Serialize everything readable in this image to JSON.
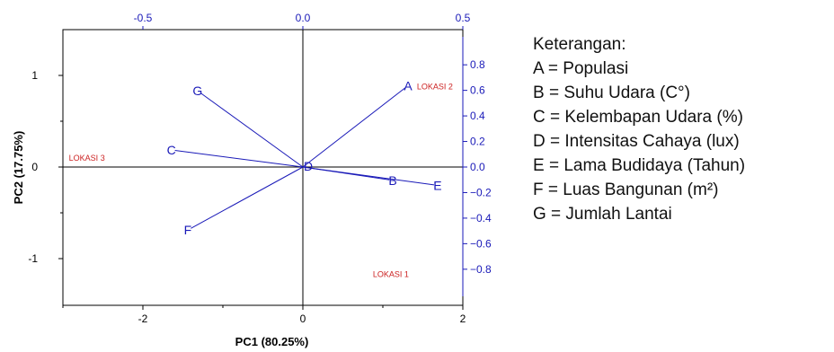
{
  "chart_data": {
    "type": "biplot",
    "xlabel": "PC1 (80.25%)",
    "ylabel": "PC2 (17.75%)",
    "xlim": [
      -3,
      2
    ],
    "ylim": [
      -1.5,
      1.5
    ],
    "x_ticks": [
      "-2",
      "0",
      "2"
    ],
    "y_ticks": [
      "1",
      "0",
      "-1"
    ],
    "loading_xlim": [
      -0.75,
      0.5
    ],
    "loading_ylim": [
      -1.0,
      1.0
    ],
    "top_ticks": [
      "-0.5",
      "0.0",
      "0.5"
    ],
    "right_ticks": [
      "0.8",
      "0.6",
      "0.4",
      "0.2",
      "0.0",
      "−0.2",
      "−0.4",
      "−0.6",
      "−0.8"
    ],
    "axis_color": "#1a1ab8",
    "score_color": "#cc2222",
    "scores": [
      {
        "label": "LOKASI 1",
        "x": 1.1,
        "y": -1.2
      },
      {
        "label": "LOKASI 2",
        "x": 1.65,
        "y": 0.85
      },
      {
        "label": "LOKASI 3",
        "x": -2.7,
        "y": 0.07
      }
    ],
    "loadings": [
      {
        "label": "A",
        "x": 0.32,
        "y": 0.62
      },
      {
        "label": "B",
        "x": 0.27,
        "y": -0.1
      },
      {
        "label": "C",
        "x": -0.4,
        "y": 0.13
      },
      {
        "label": "D",
        "x": 0.01,
        "y": 0.0
      },
      {
        "label": "E",
        "x": 0.41,
        "y": -0.14
      },
      {
        "label": "F",
        "x": -0.35,
        "y": -0.48
      },
      {
        "label": "G",
        "x": -0.32,
        "y": 0.58
      }
    ]
  },
  "legend": {
    "title": "Keterangan:",
    "items": [
      "A = Populasi",
      "B = Suhu Udara (C°)",
      "C = Kelembapan Udara (%)",
      "D = Intensitas Cahaya (lux)",
      "E = Lama Budidaya (Tahun)",
      "F = Luas Bangunan (m²)",
      "G = Jumlah Lantai"
    ]
  }
}
